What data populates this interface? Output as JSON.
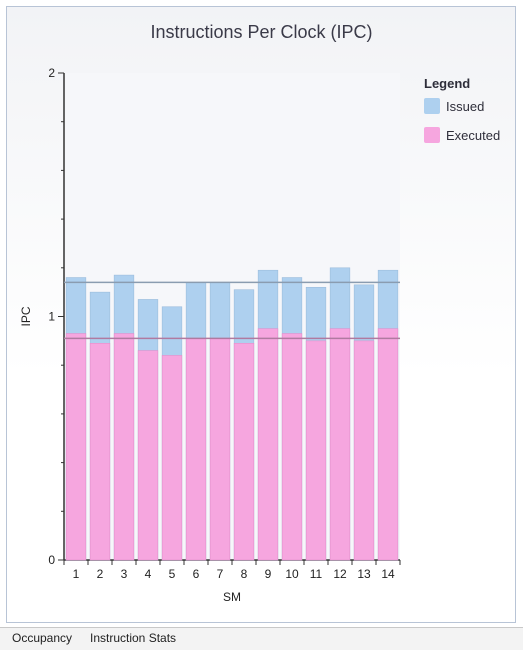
{
  "chart_data": {
    "type": "bar",
    "title": "Instructions Per Clock (IPC)",
    "xlabel": "SM",
    "ylabel": "IPC",
    "ylim": [
      0,
      2
    ],
    "y_ticks": [
      "0",
      "1",
      "2"
    ],
    "categories": [
      "1",
      "2",
      "3",
      "4",
      "5",
      "6",
      "7",
      "8",
      "9",
      "10",
      "11",
      "12",
      "13",
      "14"
    ],
    "series": [
      {
        "name": "Issued",
        "color": "#aed0ef",
        "values": [
          1.16,
          1.1,
          1.17,
          1.07,
          1.04,
          1.14,
          1.14,
          1.11,
          1.19,
          1.16,
          1.12,
          1.2,
          1.13,
          1.19
        ]
      },
      {
        "name": "Executed",
        "color": "#f6a6df",
        "values": [
          0.93,
          0.89,
          0.93,
          0.86,
          0.84,
          0.91,
          0.91,
          0.89,
          0.95,
          0.93,
          0.9,
          0.95,
          0.9,
          0.95
        ]
      }
    ],
    "reference_lines": [
      {
        "series": "Issued",
        "value": 1.14,
        "color": "#8a9cb0"
      },
      {
        "series": "Executed",
        "value": 0.91,
        "color": "#b07aa0"
      }
    ],
    "legend": {
      "title": "Legend",
      "position": "right"
    },
    "grid": false
  },
  "tabs": [
    {
      "label": "Occupancy"
    },
    {
      "label": "Instruction Stats"
    }
  ]
}
